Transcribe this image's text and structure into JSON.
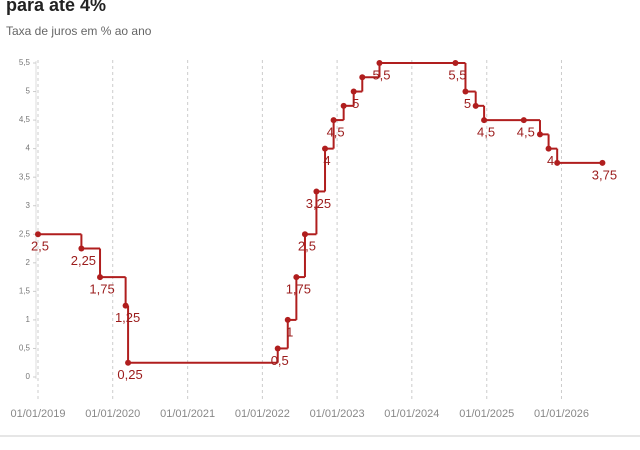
{
  "chart_data": {
    "type": "step",
    "title": "para até 4%",
    "subtitle": "Taxa de juros em % ao ano",
    "x": [
      "2019-01-01",
      "2019-08-01",
      "2019-10-31",
      "2020-03-04",
      "2020-03-16",
      "2022-03-17",
      "2022-05-05",
      "2022-06-16",
      "2022-07-28",
      "2022-09-22",
      "2022-11-03",
      "2022-12-15",
      "2023-02-02",
      "2023-03-23",
      "2023-05-04",
      "2023-07-27",
      "2024-08-01",
      "2024-09-19",
      "2024-11-08",
      "2024-12-19",
      "2025-07-01",
      "2025-09-18",
      "2025-10-30",
      "2025-12-11",
      "2026-07-20"
    ],
    "series": [
      {
        "name": "Taxa de juros",
        "color": "#b01e1e",
        "values": [
          2.5,
          2.25,
          1.75,
          1.25,
          0.25,
          0.5,
          1,
          1.75,
          2.5,
          3.25,
          4,
          4.5,
          4.75,
          5,
          5.25,
          5.5,
          5.5,
          5,
          4.75,
          4.5,
          4.5,
          4.25,
          4,
          3.75,
          3.75
        ],
        "value_labels": [
          "2,5",
          "2,25",
          "1,75",
          "1,25",
          "0,25",
          "0,5",
          "1",
          "1,75",
          "2,5",
          "3,25",
          "4",
          "4,5",
          null,
          "5",
          null,
          "5,5",
          "5,5",
          "5",
          null,
          "4,5",
          "4,5",
          null,
          "4",
          null,
          "3,75"
        ]
      }
    ],
    "xlim": [
      "2019-01-01",
      "2026-12-31"
    ],
    "xticks": [
      {
        "value": "2019-01-01",
        "label": "01/01/2019"
      },
      {
        "value": "2020-01-01",
        "label": "01/01/2020"
      },
      {
        "value": "2021-01-01",
        "label": "01/01/2021"
      },
      {
        "value": "2022-01-01",
        "label": "01/01/2022"
      },
      {
        "value": "2023-01-01",
        "label": "01/01/2023"
      },
      {
        "value": "2024-01-01",
        "label": "01/01/2024"
      },
      {
        "value": "2025-01-01",
        "label": "01/01/2025"
      },
      {
        "value": "2026-01-01",
        "label": "01/01/2026"
      }
    ],
    "ylim": [
      0,
      5.5
    ],
    "yticks": [
      0,
      {
        "value": 0.5,
        "label": "0,5"
      },
      1,
      {
        "value": 1.5,
        "label": "1,5"
      },
      2,
      {
        "value": 2.5,
        "label": "2,5"
      },
      3,
      {
        "value": 3.5,
        "label": "3,5"
      },
      4,
      {
        "value": 4.5,
        "label": "4,5"
      },
      5,
      {
        "value": 5.5,
        "label": "5,5"
      }
    ],
    "grid": true
  }
}
